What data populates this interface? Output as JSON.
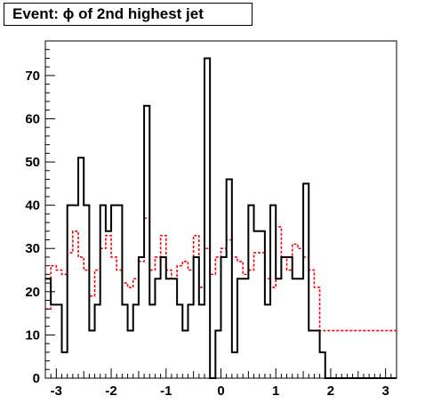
{
  "chart_data": {
    "type": "histogram",
    "title": "Event: ϕ of 2nd highest jet",
    "xlabel": "",
    "ylabel": "",
    "xlim": [
      -3.2,
      3.2
    ],
    "ylim": [
      0,
      78
    ],
    "bin_edges_start": -3.2,
    "bin_width": 0.1,
    "x_ticks": [
      -3,
      -2,
      -1,
      0,
      1,
      2,
      3
    ],
    "y_ticks": [
      0,
      10,
      20,
      30,
      40,
      50,
      60,
      70
    ],
    "grid": false,
    "legend": "none",
    "series": [
      {
        "style": "solid",
        "color": "#000000",
        "values": [
          23,
          17,
          17,
          6,
          40,
          40,
          51,
          40,
          11,
          17,
          40,
          34,
          40,
          40,
          17,
          11,
          17,
          28,
          63,
          17,
          23,
          28,
          23,
          23,
          17,
          11,
          17,
          28,
          17,
          74,
          0,
          11,
          28,
          46,
          6,
          23,
          23,
          40,
          34,
          34,
          17,
          40,
          23,
          28,
          28,
          23,
          23,
          45,
          11,
          11,
          6,
          0,
          0,
          0,
          0,
          0,
          0,
          0,
          0,
          0,
          0,
          0,
          0,
          0
        ]
      },
      {
        "style": "dashed",
        "color": "#ff0000",
        "values": [
          16,
          26,
          25,
          24,
          29,
          34,
          28,
          25,
          19,
          25,
          30,
          33,
          28,
          25,
          22,
          21,
          23,
          27,
          37,
          25,
          28,
          33,
          25,
          23,
          26,
          27,
          25,
          33,
          21,
          30,
          24,
          28,
          30,
          32,
          28,
          27,
          24,
          25,
          29,
          29,
          23,
          21,
          35,
          28,
          25,
          31,
          30,
          28,
          25,
          21,
          11,
          11,
          11,
          11,
          11,
          11,
          11,
          11,
          11,
          11,
          11,
          11,
          11,
          11
        ]
      }
    ]
  }
}
